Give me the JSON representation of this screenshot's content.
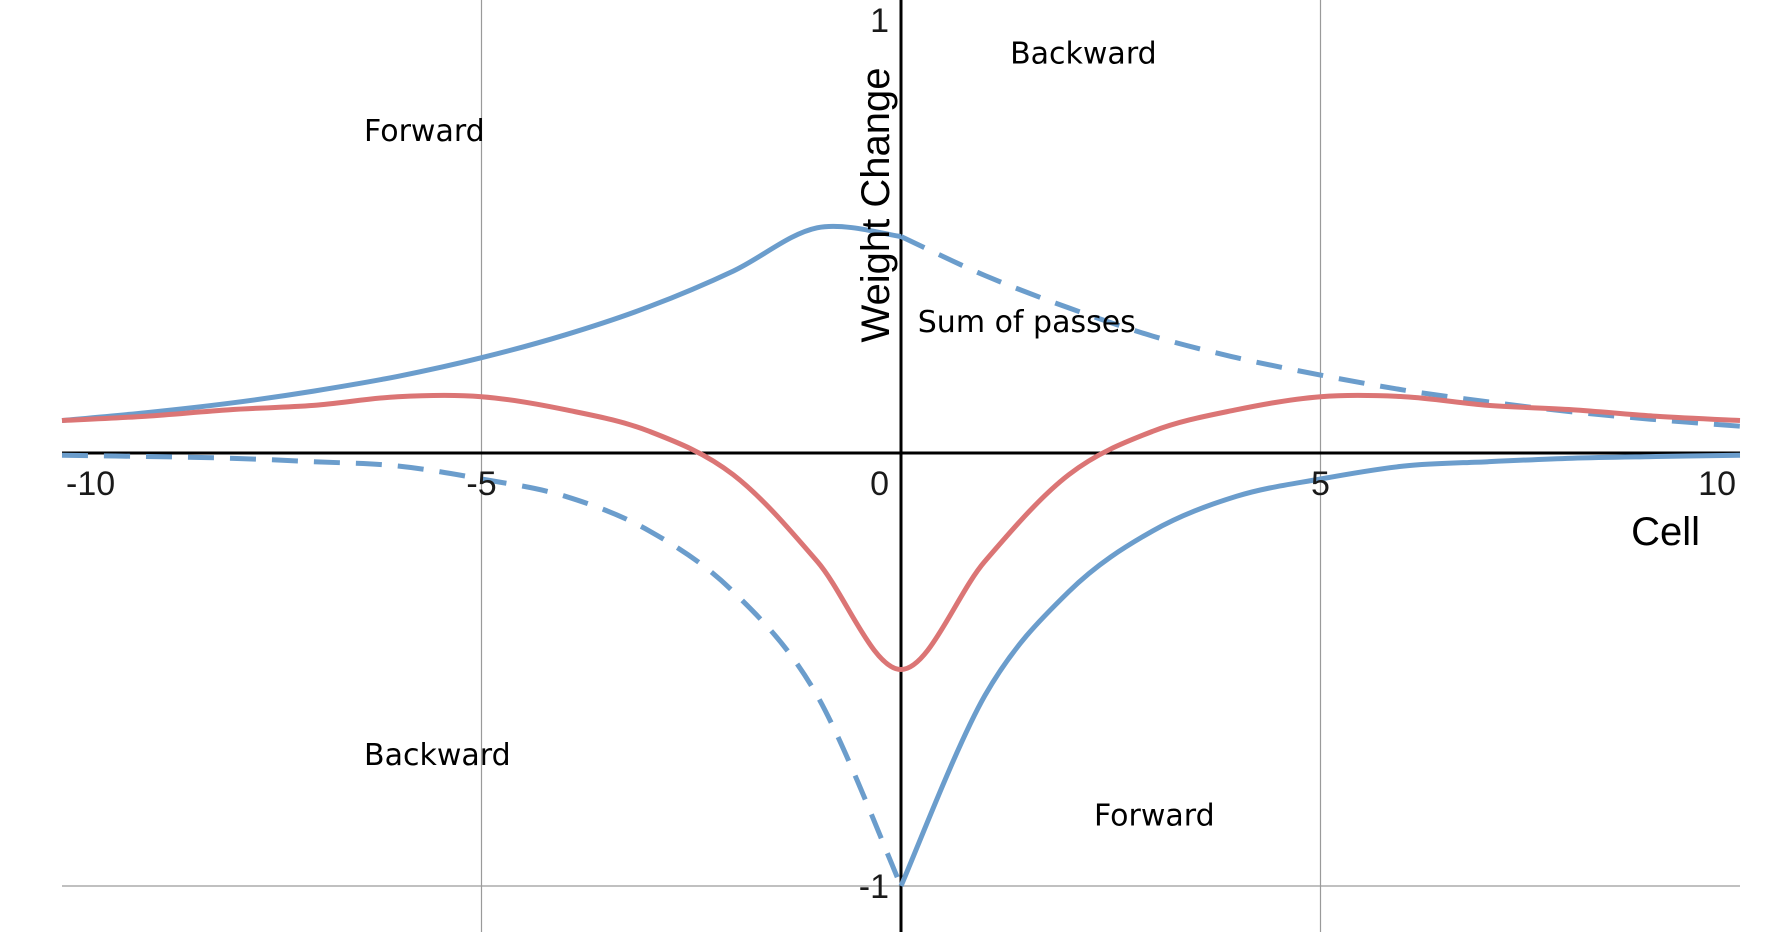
{
  "chart_data": {
    "type": "line",
    "title": "",
    "xlabel": "Cell",
    "ylabel": "Weight Change",
    "xlim": [
      -10,
      10
    ],
    "ylim": [
      -1,
      1
    ],
    "x_ticks": [
      -10,
      -5,
      0,
      5,
      10
    ],
    "x_tick_labels": [
      "-10",
      "-5",
      "0",
      "5",
      "10"
    ],
    "y_ticks": [
      1,
      -1
    ],
    "y_tick_labels": [
      "1",
      "-1"
    ],
    "grid": true,
    "legend": "none",
    "colors": {
      "blue": "#6b9dcc",
      "red": "#db7575"
    },
    "series": [
      {
        "color": "#6b9dcc",
        "style": "solid",
        "x": [
          -10,
          -9,
          -8,
          -7,
          -6,
          -5,
          -4,
          -3,
          -2,
          -1,
          0
        ],
        "y": [
          0.075,
          0.093,
          0.115,
          0.143,
          0.177,
          0.22,
          0.273,
          0.338,
          0.42,
          0.52,
          0.5
        ]
      },
      {
        "color": "#6b9dcc",
        "style": "dashed",
        "x": [
          0,
          1,
          2,
          3,
          4,
          5,
          6,
          7,
          8,
          9,
          10
        ],
        "y": [
          0.5,
          0.41,
          0.335,
          0.27,
          0.22,
          0.18,
          0.145,
          0.118,
          0.095,
          0.077,
          0.062
        ]
      },
      {
        "color": "#6b9dcc",
        "style": "dashed",
        "x": [
          -10,
          -9,
          -8,
          -7,
          -6,
          -5,
          -4,
          -3,
          -2,
          -1,
          0
        ],
        "y": [
          -0.005,
          -0.008,
          -0.012,
          -0.02,
          -0.03,
          -0.06,
          -0.1,
          -0.18,
          -0.32,
          -0.56,
          -1.0
        ]
      },
      {
        "color": "#6b9dcc",
        "style": "solid",
        "x": [
          0,
          1,
          2,
          3,
          4,
          5,
          6,
          7,
          8,
          9,
          10
        ],
        "y": [
          -1.0,
          -0.56,
          -0.32,
          -0.18,
          -0.1,
          -0.06,
          -0.03,
          -0.02,
          -0.012,
          -0.008,
          -0.005
        ]
      },
      {
        "color": "#db7575",
        "style": "solid",
        "x": [
          -10,
          -9,
          -8,
          -7,
          -6,
          -5,
          -4,
          -3,
          -2,
          -1,
          0,
          1,
          2,
          3,
          4,
          5,
          6,
          7,
          8,
          9,
          10
        ],
        "y": [
          0.075,
          0.085,
          0.1,
          0.11,
          0.13,
          0.13,
          0.1,
          0.05,
          -0.05,
          -0.25,
          -0.5,
          -0.25,
          -0.05,
          0.05,
          0.1,
          0.13,
          0.13,
          0.11,
          0.1,
          0.085,
          0.075
        ]
      }
    ],
    "annotations": [
      {
        "text": "Forward",
        "x": -6.4,
        "y": 0.72
      },
      {
        "text": "Backward",
        "x": 1.3,
        "y": 0.9
      },
      {
        "text": "Sum of passes",
        "x": 0.2,
        "y": 0.28
      },
      {
        "text": "Backward",
        "x": -6.4,
        "y": -0.72
      },
      {
        "text": "Forward",
        "x": 2.3,
        "y": -0.86
      }
    ]
  }
}
